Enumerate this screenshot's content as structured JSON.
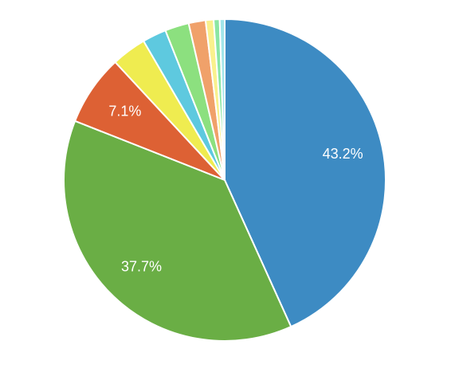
{
  "chart_data": {
    "type": "pie",
    "values": [
      43.2,
      37.7,
      7.1,
      3.5,
      2.4,
      2.4,
      1.7,
      0.8,
      0.6,
      0.5
    ],
    "value_labels": [
      "43.2%",
      "37.7%",
      "7.1%",
      null,
      null,
      null,
      null,
      null,
      null,
      null
    ],
    "colors": [
      "#3d8bc3",
      "#6aae45",
      "#dd6134",
      "#efec50",
      "#5ec9df",
      "#8ce07f",
      "#f0a16a",
      "#f9f18d",
      "#8be6a3",
      "#a2e6ea"
    ]
  }
}
